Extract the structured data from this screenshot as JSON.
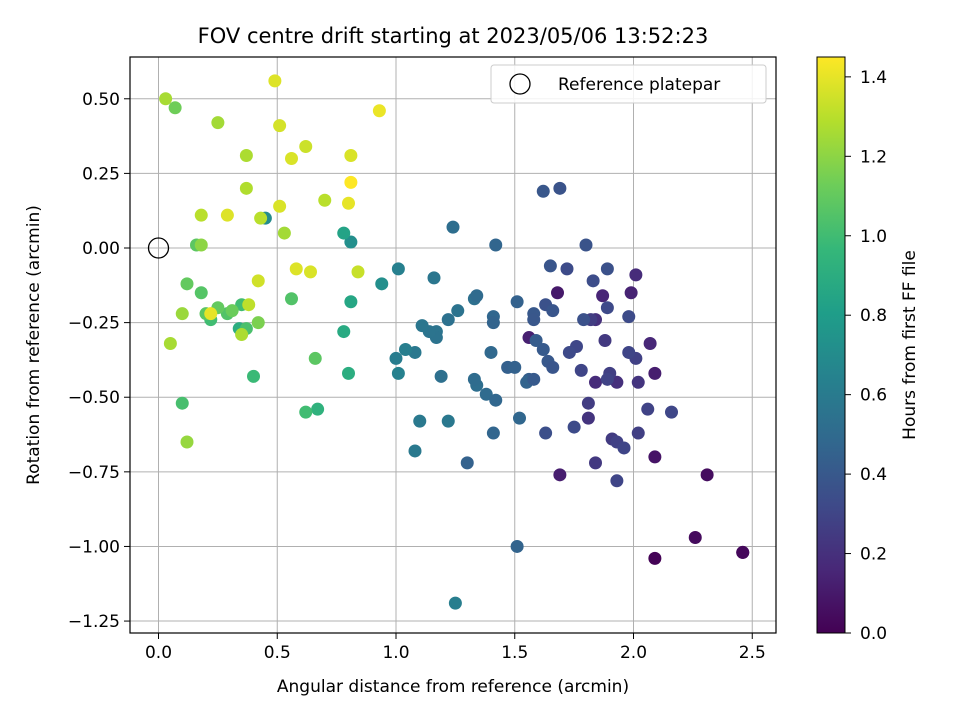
{
  "chart_data": {
    "type": "scatter",
    "title": "FOV centre drift starting at 2023/05/06 13:52:23",
    "xlabel": "Angular distance from reference (arcmin)",
    "ylabel": "Rotation from reference (arcmin)",
    "xlim": [
      -0.12,
      2.6
    ],
    "ylim": [
      -1.29,
      0.64
    ],
    "xticks": [
      0.0,
      0.5,
      1.0,
      1.5,
      2.0,
      2.5
    ],
    "xtick_labels": [
      "0.0",
      "0.5",
      "1.0",
      "1.5",
      "2.0",
      "2.5"
    ],
    "yticks": [
      0.5,
      0.25,
      0.0,
      -0.25,
      -0.5,
      -0.75,
      -1.0,
      -1.25
    ],
    "ytick_labels": [
      "0.50",
      "0.25",
      "0.00",
      "−0.25",
      "−0.50",
      "−0.75",
      "−1.00",
      "−1.25"
    ],
    "grid": true,
    "legend": {
      "position": "top-right",
      "entries": [
        {
          "label": "Reference platepar",
          "marker": "open-circle"
        }
      ]
    },
    "reference_point": {
      "x": 0.0,
      "y": 0.0
    },
    "colorbar": {
      "label": "Hours from first FF file",
      "colormap": "viridis",
      "range": [
        0.0,
        1.45
      ],
      "ticks": [
        0.0,
        0.2,
        0.4,
        0.6,
        0.8,
        1.0,
        1.2,
        1.4
      ],
      "tick_labels": [
        "0.0",
        "0.2",
        "0.4",
        "0.6",
        "0.8",
        "1.0",
        "1.2",
        "1.4"
      ]
    },
    "points": [
      {
        "x": 2.46,
        "y": -1.02,
        "h": 0.02
      },
      {
        "x": 2.46,
        "y": -1.02,
        "h": 0.03
      },
      {
        "x": 2.26,
        "y": -0.97,
        "h": 0.04
      },
      {
        "x": 2.09,
        "y": -1.04,
        "h": 0.01
      },
      {
        "x": 2.31,
        "y": -0.76,
        "h": 0.05
      },
      {
        "x": 2.09,
        "y": -0.7,
        "h": 0.08
      },
      {
        "x": 1.69,
        "y": -0.76,
        "h": 0.12
      },
      {
        "x": 1.68,
        "y": -0.15,
        "h": 0.1
      },
      {
        "x": 1.56,
        "y": -0.3,
        "h": 0.13
      },
      {
        "x": 1.87,
        "y": -0.16,
        "h": 0.15
      },
      {
        "x": 1.99,
        "y": -0.15,
        "h": 0.14
      },
      {
        "x": 2.07,
        "y": -0.32,
        "h": 0.16
      },
      {
        "x": 2.09,
        "y": -0.42,
        "h": 0.12
      },
      {
        "x": 1.84,
        "y": -0.45,
        "h": 0.18
      },
      {
        "x": 1.93,
        "y": -0.45,
        "h": 0.2
      },
      {
        "x": 1.84,
        "y": -0.24,
        "h": 0.2
      },
      {
        "x": 2.01,
        "y": -0.09,
        "h": 0.18
      },
      {
        "x": 2.02,
        "y": -0.45,
        "h": 0.22
      },
      {
        "x": 1.88,
        "y": -0.31,
        "h": 0.24
      },
      {
        "x": 1.81,
        "y": -0.52,
        "h": 0.26
      },
      {
        "x": 1.91,
        "y": -0.64,
        "h": 0.25
      },
      {
        "x": 1.93,
        "y": -0.65,
        "h": 0.28
      },
      {
        "x": 1.96,
        "y": -0.67,
        "h": 0.3
      },
      {
        "x": 1.81,
        "y": -0.57,
        "h": 0.22
      },
      {
        "x": 1.84,
        "y": -0.72,
        "h": 0.24
      },
      {
        "x": 1.93,
        "y": -0.78,
        "h": 0.3
      },
      {
        "x": 2.02,
        "y": -0.62,
        "h": 0.27
      },
      {
        "x": 2.06,
        "y": -0.54,
        "h": 0.29
      },
      {
        "x": 2.16,
        "y": -0.55,
        "h": 0.31
      },
      {
        "x": 2.01,
        "y": -0.37,
        "h": 0.28
      },
      {
        "x": 1.98,
        "y": -0.35,
        "h": 0.3
      },
      {
        "x": 1.98,
        "y": -0.23,
        "h": 0.33
      },
      {
        "x": 1.9,
        "y": -0.42,
        "h": 0.27
      },
      {
        "x": 1.89,
        "y": -0.44,
        "h": 0.29
      },
      {
        "x": 1.78,
        "y": -0.41,
        "h": 0.3
      },
      {
        "x": 1.76,
        "y": -0.33,
        "h": 0.31
      },
      {
        "x": 1.73,
        "y": -0.35,
        "h": 0.32
      },
      {
        "x": 1.75,
        "y": -0.6,
        "h": 0.33
      },
      {
        "x": 1.63,
        "y": -0.62,
        "h": 0.35
      },
      {
        "x": 1.82,
        "y": -0.24,
        "h": 0.26
      },
      {
        "x": 1.83,
        "y": -0.11,
        "h": 0.34
      },
      {
        "x": 1.89,
        "y": -0.07,
        "h": 0.36
      },
      {
        "x": 1.89,
        "y": -0.2,
        "h": 0.32
      },
      {
        "x": 1.8,
        "y": 0.01,
        "h": 0.37
      },
      {
        "x": 1.79,
        "y": -0.24,
        "h": 0.36
      },
      {
        "x": 1.72,
        "y": -0.07,
        "h": 0.33
      },
      {
        "x": 1.65,
        "y": -0.06,
        "h": 0.38
      },
      {
        "x": 1.69,
        "y": 0.2,
        "h": 0.37
      },
      {
        "x": 1.62,
        "y": 0.19,
        "h": 0.39
      },
      {
        "x": 1.63,
        "y": -0.19,
        "h": 0.36
      },
      {
        "x": 1.66,
        "y": -0.21,
        "h": 0.38
      },
      {
        "x": 1.58,
        "y": -0.22,
        "h": 0.4
      },
      {
        "x": 1.58,
        "y": -0.24,
        "h": 0.39
      },
      {
        "x": 1.62,
        "y": -0.34,
        "h": 0.41
      },
      {
        "x": 1.64,
        "y": -0.38,
        "h": 0.4
      },
      {
        "x": 1.66,
        "y": -0.4,
        "h": 0.38
      },
      {
        "x": 1.59,
        "y": -0.31,
        "h": 0.42
      },
      {
        "x": 1.56,
        "y": -0.44,
        "h": 0.43
      },
      {
        "x": 1.47,
        "y": -0.4,
        "h": 0.44
      },
      {
        "x": 1.5,
        "y": -0.4,
        "h": 0.45
      },
      {
        "x": 1.55,
        "y": -0.45,
        "h": 0.46
      },
      {
        "x": 1.58,
        "y": -0.44,
        "h": 0.41
      },
      {
        "x": 1.51,
        "y": -0.18,
        "h": 0.45
      },
      {
        "x": 1.42,
        "y": 0.01,
        "h": 0.47
      },
      {
        "x": 1.41,
        "y": -0.23,
        "h": 0.48
      },
      {
        "x": 1.41,
        "y": -0.25,
        "h": 0.46
      },
      {
        "x": 1.4,
        "y": -0.35,
        "h": 0.49
      },
      {
        "x": 1.38,
        "y": -0.49,
        "h": 0.5
      },
      {
        "x": 1.42,
        "y": -0.51,
        "h": 0.48
      },
      {
        "x": 1.34,
        "y": -0.46,
        "h": 0.52
      },
      {
        "x": 1.33,
        "y": -0.44,
        "h": 0.51
      },
      {
        "x": 1.3,
        "y": -0.72,
        "h": 0.45
      },
      {
        "x": 1.41,
        "y": -0.62,
        "h": 0.47
      },
      {
        "x": 1.52,
        "y": -0.57,
        "h": 0.48
      },
      {
        "x": 1.51,
        "y": -1.0,
        "h": 0.46
      },
      {
        "x": 1.33,
        "y": -0.17,
        "h": 0.53
      },
      {
        "x": 1.34,
        "y": -0.16,
        "h": 0.5
      },
      {
        "x": 1.24,
        "y": 0.07,
        "h": 0.52
      },
      {
        "x": 1.26,
        "y": -0.21,
        "h": 0.55
      },
      {
        "x": 1.22,
        "y": -0.24,
        "h": 0.54
      },
      {
        "x": 1.17,
        "y": -0.28,
        "h": 0.56
      },
      {
        "x": 1.17,
        "y": -0.3,
        "h": 0.55
      },
      {
        "x": 1.19,
        "y": -0.43,
        "h": 0.53
      },
      {
        "x": 1.16,
        "y": -0.1,
        "h": 0.57
      },
      {
        "x": 1.14,
        "y": -0.28,
        "h": 0.56
      },
      {
        "x": 1.11,
        "y": -0.26,
        "h": 0.57
      },
      {
        "x": 1.08,
        "y": -0.35,
        "h": 0.58
      },
      {
        "x": 1.22,
        "y": -0.58,
        "h": 0.58
      },
      {
        "x": 1.1,
        "y": -0.58,
        "h": 0.59
      },
      {
        "x": 1.08,
        "y": -0.68,
        "h": 0.59
      },
      {
        "x": 1.25,
        "y": -1.19,
        "h": 0.62
      },
      {
        "x": 1.04,
        "y": -0.34,
        "h": 0.62
      },
      {
        "x": 1.0,
        "y": -0.37,
        "h": 0.61
      },
      {
        "x": 1.01,
        "y": -0.42,
        "h": 0.64
      },
      {
        "x": 1.01,
        "y": -0.07,
        "h": 0.63
      },
      {
        "x": 0.94,
        "y": -0.12,
        "h": 0.72
      },
      {
        "x": 0.81,
        "y": 0.02,
        "h": 0.72
      },
      {
        "x": 0.78,
        "y": 0.05,
        "h": 0.84
      },
      {
        "x": 0.81,
        "y": -0.18,
        "h": 0.86
      },
      {
        "x": 0.78,
        "y": -0.28,
        "h": 0.88
      },
      {
        "x": 0.8,
        "y": -0.42,
        "h": 0.9
      },
      {
        "x": 0.45,
        "y": 0.1,
        "h": 0.7
      },
      {
        "x": 0.67,
        "y": -0.54,
        "h": 0.93
      },
      {
        "x": 0.62,
        "y": -0.55,
        "h": 1.0
      },
      {
        "x": 0.66,
        "y": -0.37,
        "h": 1.08
      },
      {
        "x": 0.56,
        "y": -0.17,
        "h": 1.05
      },
      {
        "x": 0.4,
        "y": -0.43,
        "h": 0.98
      },
      {
        "x": 0.34,
        "y": -0.27,
        "h": 0.9
      },
      {
        "x": 0.35,
        "y": -0.19,
        "h": 1.0
      },
      {
        "x": 0.37,
        "y": -0.27,
        "h": 1.03
      },
      {
        "x": 0.29,
        "y": -0.22,
        "h": 1.05
      },
      {
        "x": 0.25,
        "y": -0.2,
        "h": 1.1
      },
      {
        "x": 0.22,
        "y": -0.24,
        "h": 1.0
      },
      {
        "x": 0.2,
        "y": -0.22,
        "h": 1.08
      },
      {
        "x": 0.18,
        "y": -0.15,
        "h": 1.06
      },
      {
        "x": 0.12,
        "y": -0.12,
        "h": 1.1
      },
      {
        "x": 0.1,
        "y": -0.52,
        "h": 1.02
      },
      {
        "x": 0.12,
        "y": -0.65,
        "h": 1.22
      },
      {
        "x": 0.1,
        "y": -0.22,
        "h": 1.23
      },
      {
        "x": 0.05,
        "y": -0.32,
        "h": 1.26
      },
      {
        "x": 0.16,
        "y": 0.01,
        "h": 1.08
      },
      {
        "x": 0.18,
        "y": 0.01,
        "h": 1.2
      },
      {
        "x": 0.31,
        "y": -0.21,
        "h": 1.12
      },
      {
        "x": 0.35,
        "y": -0.29,
        "h": 1.27
      },
      {
        "x": 0.38,
        "y": -0.19,
        "h": 1.31
      },
      {
        "x": 0.42,
        "y": -0.25,
        "h": 1.16
      },
      {
        "x": 0.42,
        "y": -0.11,
        "h": 1.35
      },
      {
        "x": 0.43,
        "y": 0.1,
        "h": 1.3
      },
      {
        "x": 0.53,
        "y": 0.05,
        "h": 1.25
      },
      {
        "x": 0.18,
        "y": 0.11,
        "h": 1.3
      },
      {
        "x": 0.29,
        "y": 0.11,
        "h": 1.38
      },
      {
        "x": 0.37,
        "y": 0.2,
        "h": 1.28
      },
      {
        "x": 0.37,
        "y": 0.31,
        "h": 1.27
      },
      {
        "x": 0.25,
        "y": 0.42,
        "h": 1.25
      },
      {
        "x": 0.07,
        "y": 0.47,
        "h": 1.13
      },
      {
        "x": 0.03,
        "y": 0.5,
        "h": 1.26
      },
      {
        "x": 0.22,
        "y": -0.22,
        "h": 1.4
      },
      {
        "x": 0.51,
        "y": 0.14,
        "h": 1.37
      },
      {
        "x": 0.51,
        "y": 0.41,
        "h": 1.36
      },
      {
        "x": 0.49,
        "y": 0.56,
        "h": 1.38
      },
      {
        "x": 0.56,
        "y": 0.3,
        "h": 1.37
      },
      {
        "x": 0.62,
        "y": 0.34,
        "h": 1.34
      },
      {
        "x": 0.58,
        "y": -0.07,
        "h": 1.38
      },
      {
        "x": 0.64,
        "y": -0.08,
        "h": 1.37
      },
      {
        "x": 0.7,
        "y": 0.16,
        "h": 1.3
      },
      {
        "x": 0.8,
        "y": 0.15,
        "h": 1.4
      },
      {
        "x": 0.81,
        "y": 0.22,
        "h": 1.45
      },
      {
        "x": 0.81,
        "y": 0.31,
        "h": 1.37
      },
      {
        "x": 0.84,
        "y": -0.08,
        "h": 1.33
      },
      {
        "x": 0.93,
        "y": 0.46,
        "h": 1.41
      }
    ]
  }
}
